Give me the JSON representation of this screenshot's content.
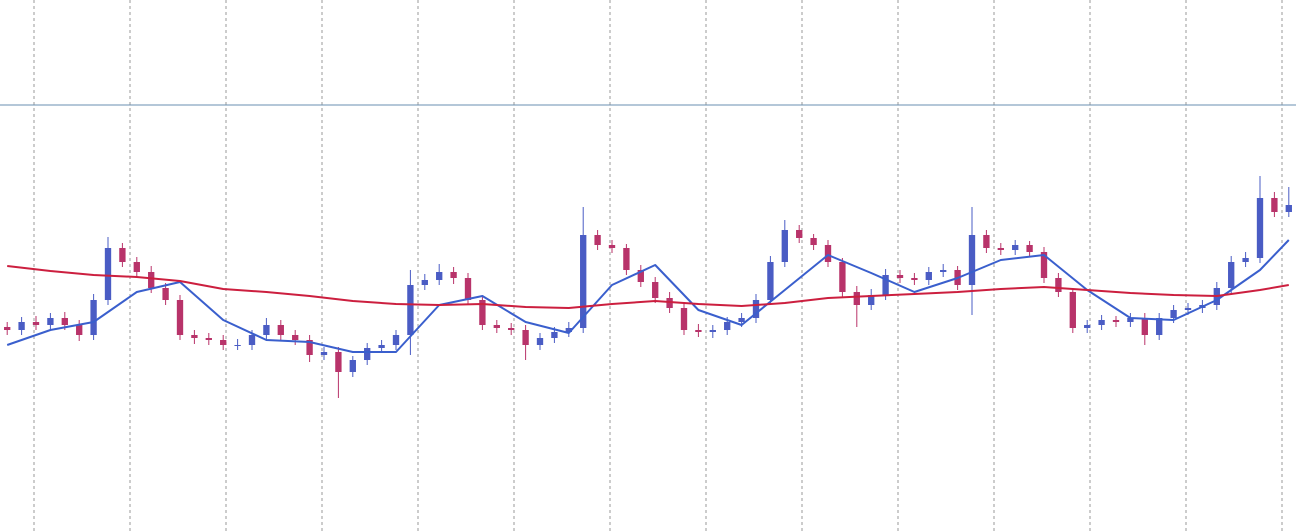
{
  "chart_data": {
    "type": "candlestick",
    "ylim": [
      0,
      532
    ],
    "up_color": "#4a5cc4",
    "down_color": "#b8336a",
    "open": [
      205,
      202,
      210,
      207,
      214,
      207,
      197,
      232,
      284,
      270,
      260,
      244,
      232,
      197,
      194,
      192,
      187,
      187,
      197,
      207,
      197,
      192,
      177,
      180,
      160,
      172,
      184,
      187,
      197,
      247,
      252,
      260,
      254,
      232,
      207,
      204,
      202,
      187,
      194,
      200,
      204,
      297,
      287,
      284,
      262,
      250,
      234,
      224,
      202,
      200,
      202,
      210,
      214,
      232,
      270,
      302,
      294,
      287,
      270,
      240,
      227,
      237,
      257,
      254,
      252,
      260,
      262,
      247,
      297,
      284,
      282,
      287,
      280,
      254,
      240,
      204,
      207,
      212,
      210,
      214,
      197,
      214,
      222,
      224,
      227,
      244,
      270,
      274,
      334,
      320
    ],
    "high": [
      210,
      215,
      216,
      219,
      220,
      212,
      238,
      295,
      289,
      275,
      266,
      249,
      237,
      202,
      199,
      197,
      193,
      202,
      214,
      212,
      202,
      197,
      185,
      185,
      176,
      189,
      192,
      202,
      262,
      258,
      268,
      265,
      259,
      236,
      212,
      209,
      207,
      199,
      205,
      210,
      325,
      302,
      292,
      288,
      267,
      255,
      240,
      229,
      208,
      207,
      215,
      219,
      238,
      276,
      312,
      307,
      298,
      292,
      274,
      246,
      243,
      263,
      262,
      259,
      265,
      268,
      266,
      325,
      302,
      289,
      292,
      291,
      285,
      259,
      244,
      212,
      217,
      216,
      219,
      219,
      219,
      227,
      229,
      232,
      250,
      276,
      280,
      356,
      340,
      345
    ],
    "low": [
      197,
      197,
      202,
      201,
      202,
      191,
      192,
      227,
      265,
      255,
      239,
      227,
      192,
      188,
      187,
      182,
      182,
      182,
      192,
      192,
      187,
      170,
      172,
      134,
      155,
      167,
      179,
      182,
      177,
      242,
      247,
      248,
      227,
      202,
      199,
      197,
      172,
      182,
      189,
      195,
      199,
      282,
      279,
      257,
      245,
      229,
      219,
      197,
      195,
      194,
      197,
      205,
      209,
      227,
      265,
      289,
      282,
      265,
      235,
      205,
      222,
      232,
      249,
      247,
      247,
      255,
      242,
      217,
      279,
      277,
      277,
      275,
      249,
      235,
      199,
      199,
      202,
      205,
      205,
      187,
      192,
      209,
      217,
      219,
      222,
      239,
      265,
      269,
      315,
      315
    ],
    "close": [
      202,
      210,
      207,
      214,
      207,
      197,
      232,
      284,
      270,
      260,
      244,
      232,
      197,
      194,
      192,
      187,
      187,
      197,
      207,
      197,
      192,
      177,
      180,
      160,
      172,
      184,
      187,
      197,
      247,
      252,
      260,
      254,
      232,
      207,
      204,
      202,
      187,
      194,
      200,
      204,
      297,
      287,
      284,
      262,
      250,
      234,
      224,
      202,
      200,
      202,
      210,
      214,
      232,
      270,
      302,
      294,
      287,
      270,
      240,
      227,
      237,
      257,
      254,
      252,
      260,
      262,
      247,
      297,
      284,
      282,
      287,
      280,
      254,
      240,
      204,
      207,
      212,
      210,
      214,
      197,
      214,
      222,
      224,
      227,
      244,
      270,
      274,
      334,
      320,
      327
    ],
    "lines": [
      {
        "color": "#3a5fcd",
        "x": [
          0,
          3,
          6,
          9,
          12,
          15,
          18,
          21,
          24,
          27,
          30,
          33,
          36,
          39,
          42,
          45,
          48,
          51,
          54,
          57,
          60,
          63,
          66,
          69,
          72,
          75,
          78,
          81,
          84,
          87,
          89
        ],
        "values": [
          187,
          202,
          210,
          240,
          250,
          212,
          192,
          190,
          180,
          180,
          227,
          236,
          210,
          199,
          247,
          267,
          222,
          207,
          242,
          277,
          259,
          240,
          254,
          272,
          277,
          242,
          214,
          212,
          232,
          262,
          292
        ]
      },
      {
        "color": "#cc1f3f",
        "x": [
          0,
          3,
          6,
          9,
          12,
          15,
          18,
          21,
          24,
          27,
          30,
          33,
          36,
          39,
          42,
          45,
          48,
          51,
          54,
          57,
          60,
          63,
          66,
          69,
          72,
          75,
          78,
          81,
          84,
          87,
          89
        ],
        "values": [
          266,
          261,
          257,
          255,
          251,
          243,
          240,
          236,
          231,
          228,
          227,
          228,
          225,
          224,
          228,
          231,
          228,
          226,
          229,
          234,
          236,
          238,
          240,
          243,
          245,
          242,
          239,
          237,
          236,
          242,
          247
        ]
      }
    ],
    "level_line": {
      "value": 427,
      "color": "#6a8fb0"
    }
  }
}
